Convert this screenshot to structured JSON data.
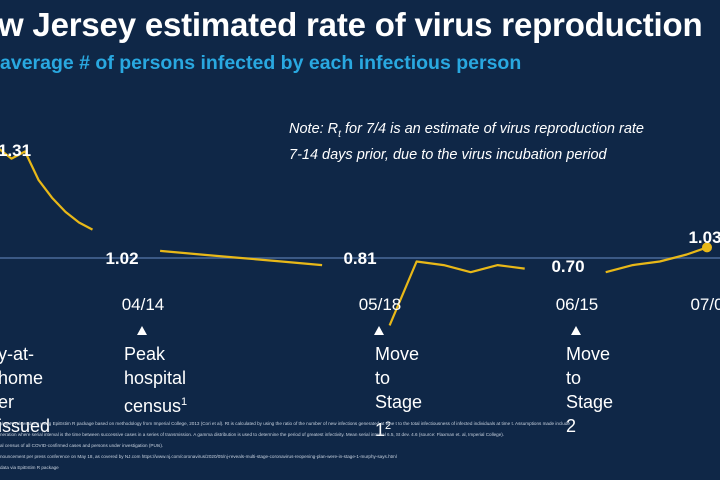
{
  "title": "w Jersey estimated rate of virus reproduction",
  "subtitle": "average # of persons infected by each infectious person",
  "note": {
    "line1_prefix": "Note: R",
    "line1_sub": "t",
    "line1_suffix": " for 7/4 is an estimate of virus reproduction rate",
    "line2": "7-14 days prior, due to the virus incubation period"
  },
  "colors": {
    "background": "#0f2747",
    "line": "#e8b818",
    "reference": "#4a6a9a",
    "subtitle": "#29a8e0"
  },
  "events": [
    {
      "text": "y-at-home\ner issued",
      "sup": ""
    },
    {
      "text": "Peak hospital\ncensus",
      "sup": "1"
    },
    {
      "text": "Move to\nStage 1",
      "sup": "2"
    },
    {
      "text": "Move to\nStage 2",
      "sup": ""
    }
  ],
  "footnotes": [
    "ying R values done using EpiEstim R package based on methodology from Imperial College, 2013 (Cori et al).   Rt is calculated by using the ratio of the number of new infections generated at time t to the total infectiousness of infected individuals at time t.  Assumptions made include",
    "neration where serial interval is the time between successive cases in a series of transmission.  A gamma distribution is used to determine the period of greatest infectivity.  Mean serial interval 6.5, St dev. 4.6 (source: Flaxman et. al, Imperial College).",
    "al census of all COVID-confirmed cases and persons under investigation (PUIs).",
    "nouncement per press conference on May 18, as covered by NJ.com https://www.nj.com/coronavirus/2020/05/nj-reveals-multi-stage-coronavirus-reopening-plan-were-in-stage-1-murphy-says.html",
    "data via EpiEstim R package"
  ],
  "chart_data": {
    "type": "line",
    "reference_value": 1.0,
    "x_ticks": [
      "",
      "04/14",
      "05/18",
      "06/15",
      "07/0"
    ],
    "data_labels": [
      "1.31",
      "1.02",
      "0.81",
      "0.70",
      "1.03"
    ],
    "series": [
      {
        "x": [
          "03/21",
          "03/23",
          "03/25",
          "03/27",
          "03/29",
          "03/31",
          "04/02",
          "04/04",
          "04/06",
          "04/08",
          "04/10",
          "04/12",
          "04/14",
          "04/20",
          "04/26",
          "05/02",
          "05/08",
          "05/13",
          "05/18",
          "05/22",
          "05/26",
          "05/30",
          "06/03",
          "06/07",
          "06/11",
          "06/15",
          "06/19",
          "06/23",
          "06/27",
          "07/01",
          "07/04"
        ],
        "y": [
          1.31,
          1.28,
          1.3,
          1.22,
          1.17,
          1.13,
          1.1,
          1.08,
          1.07,
          1.05,
          1.04,
          1.03,
          1.02,
          1.01,
          1.0,
          0.99,
          0.98,
          0.97,
          0.81,
          0.99,
          0.98,
          0.96,
          0.98,
          0.97,
          0.96,
          0.7,
          0.96,
          0.98,
          0.99,
          1.01,
          1.03
        ]
      }
    ]
  }
}
